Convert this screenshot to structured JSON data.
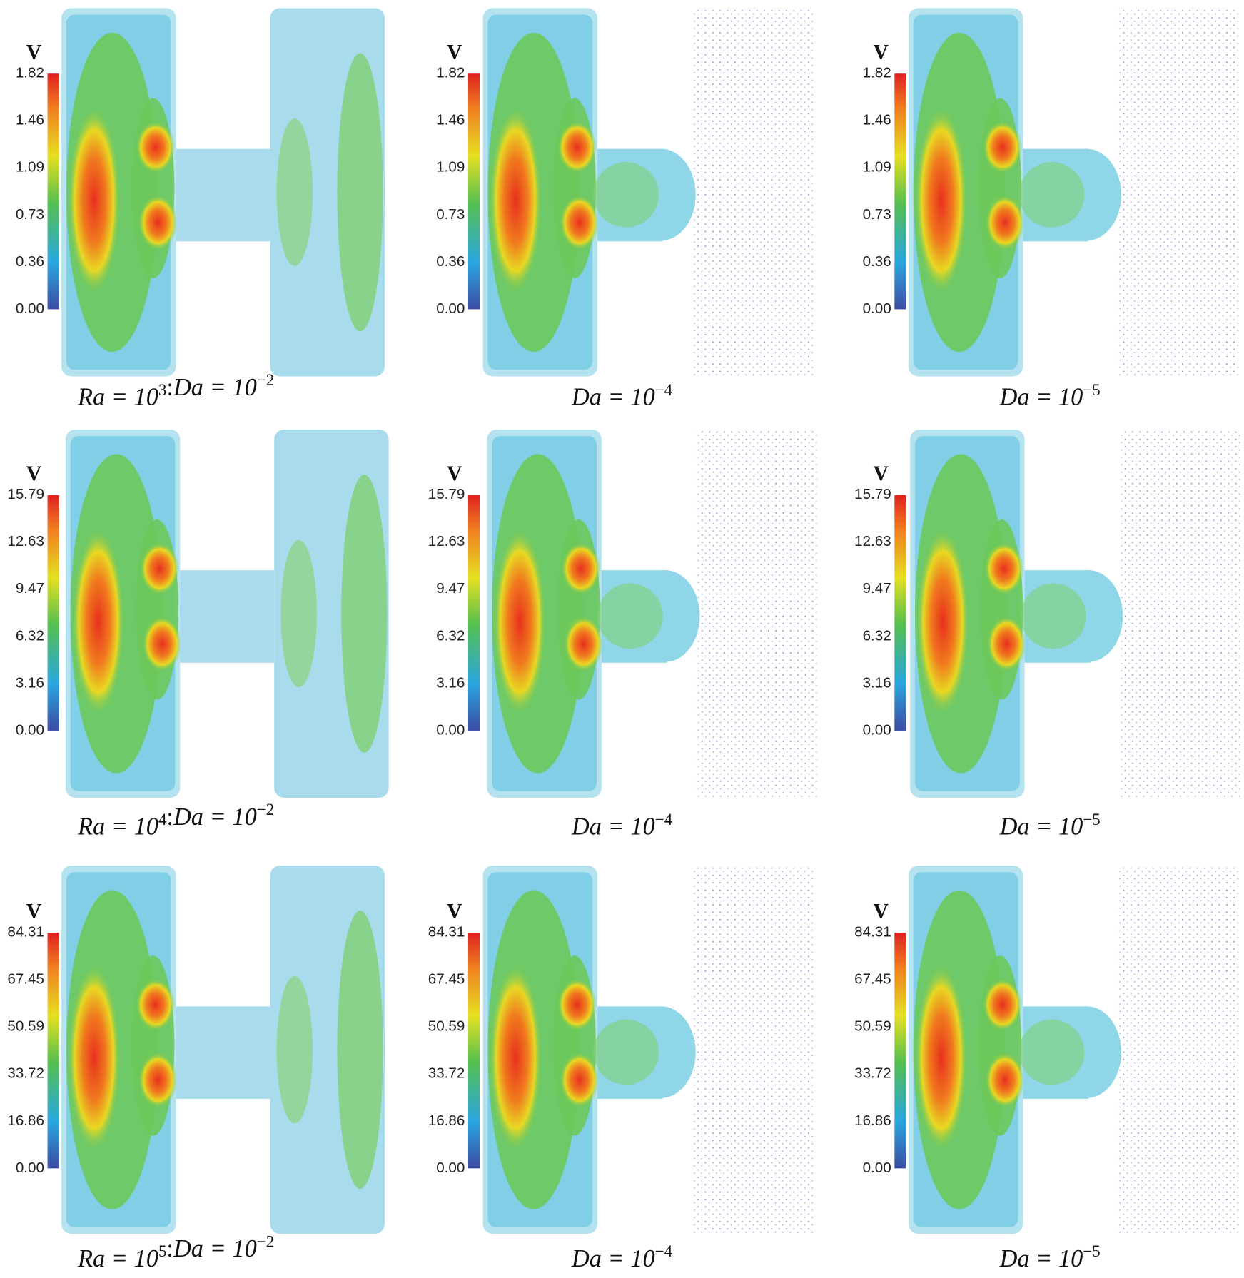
{
  "rows": [
    {
      "panels": [
        {
          "colorbar_title": "V",
          "colorbar_ticks": [
            "1.82",
            "1.46",
            "1.09",
            "0.73",
            "0.36",
            "0.00"
          ],
          "caption": {
            "ra": {
              "base": "Ra = 10",
              "exp": "3"
            },
            "sep": ":",
            "da": {
              "base": "Da = 10",
              "exp": "−2"
            }
          }
        },
        {
          "colorbar_title": "V",
          "colorbar_ticks": [
            "1.82",
            "1.46",
            "1.09",
            "0.73",
            "0.36",
            "0.00"
          ],
          "caption": {
            "da": {
              "base": "Da = 10",
              "exp": "−4"
            }
          }
        },
        {
          "colorbar_title": "V",
          "colorbar_ticks": [
            "1.82",
            "1.46",
            "1.09",
            "0.73",
            "0.36",
            "0.00"
          ],
          "caption": {
            "da": {
              "base": "Da = 10",
              "exp": "−5"
            }
          }
        }
      ]
    },
    {
      "panels": [
        {
          "colorbar_title": "V",
          "colorbar_ticks": [
            "15.79",
            "12.63",
            "9.47",
            "6.32",
            "3.16",
            "0.00"
          ],
          "caption": {
            "ra": {
              "base": "Ra = 10",
              "exp": "4"
            },
            "sep": ":",
            "da": {
              "base": "Da = 10",
              "exp": "−2"
            }
          }
        },
        {
          "colorbar_title": "V",
          "colorbar_ticks": [
            "15.79",
            "12.63",
            "9.47",
            "6.32",
            "3.16",
            "0.00"
          ],
          "caption": {
            "da": {
              "base": "Da = 10",
              "exp": "−4"
            }
          }
        },
        {
          "colorbar_title": "V",
          "colorbar_ticks": [
            "15.79",
            "12.63",
            "9.47",
            "6.32",
            "3.16",
            "0.00"
          ],
          "caption": {
            "da": {
              "base": "Da = 10",
              "exp": "−5"
            }
          }
        }
      ]
    },
    {
      "panels": [
        {
          "colorbar_title": "V",
          "colorbar_ticks": [
            "84.31",
            "67.45",
            "50.59",
            "33.72",
            "16.86",
            "0.00"
          ],
          "caption": {
            "ra": {
              "base": "Ra = 10",
              "exp": "5"
            },
            "sep": ":",
            "da": {
              "base": "Da = 10",
              "exp": "−2"
            }
          }
        },
        {
          "colorbar_title": "V",
          "colorbar_ticks": [
            "84.31",
            "67.45",
            "50.59",
            "33.72",
            "16.86",
            "0.00"
          ],
          "caption": {
            "da": {
              "base": "Da = 10",
              "exp": "−4"
            }
          }
        },
        {
          "colorbar_title": "V",
          "colorbar_ticks": [
            "84.31",
            "67.45",
            "50.59",
            "33.72",
            "16.86",
            "0.00"
          ],
          "caption": {
            "da": {
              "base": "Da = 10",
              "exp": "−5"
            }
          }
        }
      ]
    }
  ]
}
